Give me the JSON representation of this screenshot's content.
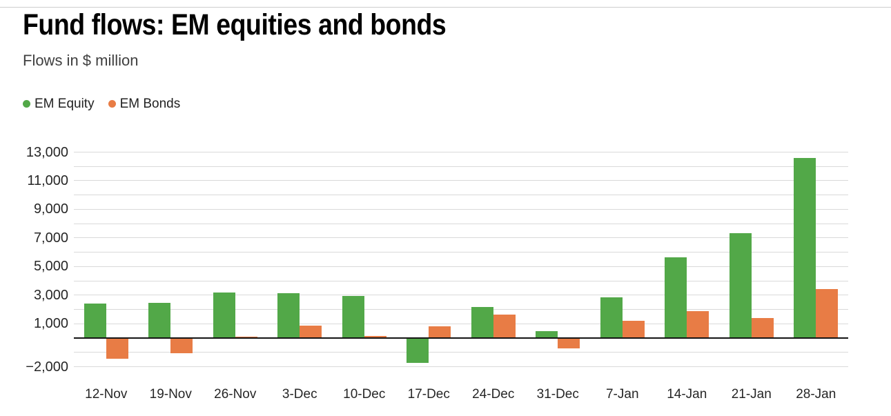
{
  "chart_data": {
    "type": "bar",
    "title": "Fund flows: EM equities and bonds",
    "subtitle": "Flows in $ million",
    "unit": "$ million",
    "categories": [
      "12-Nov",
      "19-Nov",
      "26-Nov",
      "3-Dec",
      "10-Dec",
      "17-Dec",
      "24-Dec",
      "31-Dec",
      "7-Jan",
      "14-Jan",
      "21-Jan",
      "28-Jan"
    ],
    "series": [
      {
        "name": "EM Equity",
        "color": "#52A848",
        "values": [
          2400,
          2450,
          3200,
          3150,
          2950,
          -1750,
          2150,
          500,
          2850,
          5650,
          7350,
          12600
        ]
      },
      {
        "name": "EM Bonds",
        "color": "#E87C45",
        "values": [
          -1450,
          -1050,
          100,
          850,
          150,
          800,
          1650,
          -700,
          1200,
          1900,
          1400,
          3450
        ]
      }
    ],
    "ylim": [
      -2000,
      13000
    ],
    "grid_step": 1000,
    "yticks": [
      13000,
      11000,
      9000,
      7000,
      5000,
      3000,
      1000,
      -2000
    ],
    "grid": true,
    "legend_position": "top-left"
  },
  "style": {
    "background": "#FFFFFF",
    "grid_color": "#D9D9D9",
    "zero_line_color": "#141414",
    "axis_label_color": "#262626",
    "title_color": "#000000",
    "subtitle_color": "#3F3F3F",
    "top_rule_color": "#CCCCCC"
  }
}
